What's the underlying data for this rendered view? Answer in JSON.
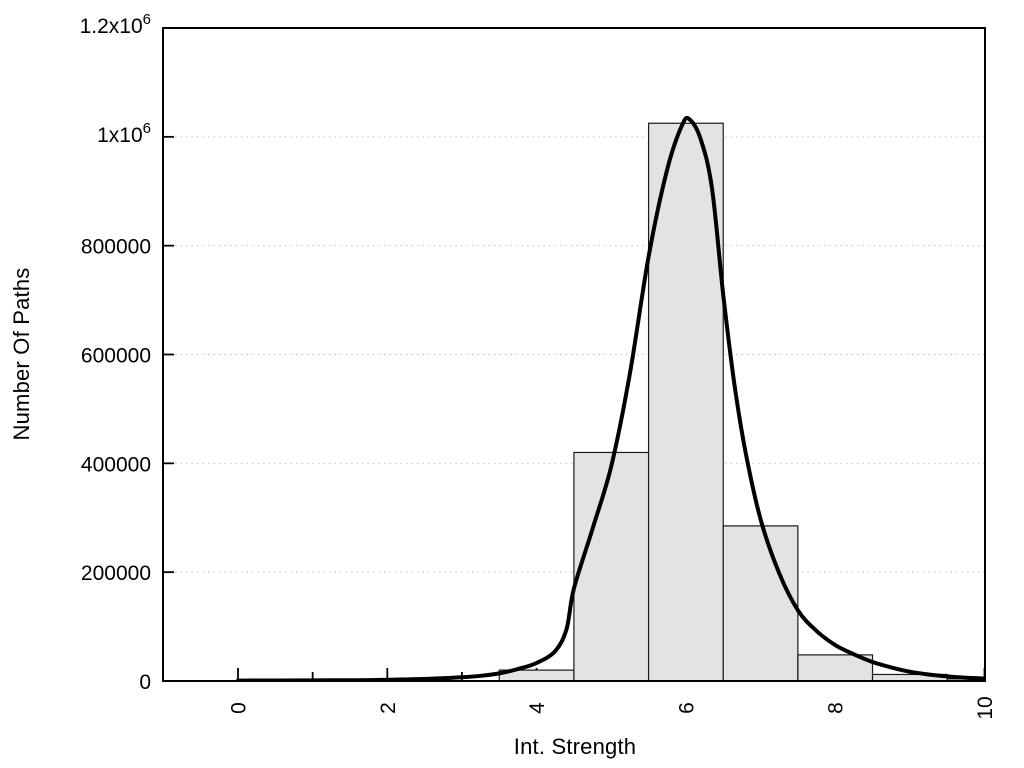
{
  "figure": {
    "background": "#ffffff"
  },
  "chart_data": {
    "type": "bar",
    "subtype": "histogram-with-fit-curve",
    "title": "",
    "xlabel": "Int. Strength",
    "ylabel": "Number Of Paths",
    "xlim": [
      -1,
      10
    ],
    "ylim": [
      0,
      1200000
    ],
    "grid": {
      "horizontal": true,
      "vertical": false,
      "style": "dotted"
    },
    "bin_width": 1,
    "bars": [
      {
        "center": 4,
        "count": 20000
      },
      {
        "center": 5,
        "count": 420000
      },
      {
        "center": 6,
        "count": 1025000
      },
      {
        "center": 7,
        "count": 285000
      },
      {
        "center": 8,
        "count": 48000
      },
      {
        "center": 9,
        "count": 12000
      },
      {
        "center": 10,
        "count": 4000
      }
    ],
    "fit_curve": {
      "name": "fit-curve",
      "points": [
        [
          0,
          800
        ],
        [
          0.5,
          900
        ],
        [
          1,
          1100
        ],
        [
          1.5,
          1500
        ],
        [
          2,
          2300
        ],
        [
          2.5,
          3800
        ],
        [
          3,
          7000
        ],
        [
          3.25,
          9500
        ],
        [
          3.5,
          14000
        ],
        [
          3.75,
          22000
        ],
        [
          4,
          33000
        ],
        [
          4.25,
          55000
        ],
        [
          4.4,
          95000
        ],
        [
          4.5,
          170000
        ],
        [
          4.75,
          280000
        ],
        [
          5,
          395000
        ],
        [
          5.25,
          565000
        ],
        [
          5.5,
          780000
        ],
        [
          5.75,
          940000
        ],
        [
          5.95,
          1022000
        ],
        [
          6.05,
          1032000
        ],
        [
          6.2,
          995000
        ],
        [
          6.35,
          905000
        ],
        [
          6.5,
          710000
        ],
        [
          6.65,
          545000
        ],
        [
          6.8,
          420000
        ],
        [
          7,
          297000
        ],
        [
          7.25,
          198000
        ],
        [
          7.5,
          130000
        ],
        [
          7.75,
          92000
        ],
        [
          8,
          66000
        ],
        [
          8.25,
          49000
        ],
        [
          8.5,
          35000
        ],
        [
          8.75,
          25000
        ],
        [
          9,
          17000
        ],
        [
          9.25,
          12000
        ],
        [
          9.5,
          8500
        ],
        [
          9.75,
          6000
        ],
        [
          10,
          4500
        ]
      ]
    },
    "x_ticks": {
      "label_rotation_deg": -90,
      "major": [
        {
          "value": 0,
          "label": "0"
        },
        {
          "value": 2,
          "label": "2"
        },
        {
          "value": 4,
          "label": "4"
        },
        {
          "value": 6,
          "label": "6"
        },
        {
          "value": 8,
          "label": "8"
        },
        {
          "value": 10,
          "label": "10"
        }
      ],
      "minor_values": [
        1,
        3,
        5,
        7,
        9
      ]
    },
    "y_ticks": [
      {
        "value": 0,
        "label": "0"
      },
      {
        "value": 200000,
        "label": "200000"
      },
      {
        "value": 400000,
        "label": "400000"
      },
      {
        "value": 600000,
        "label": "600000"
      },
      {
        "value": 800000,
        "label": "800000"
      },
      {
        "value": 1000000,
        "label": "1x10",
        "sup": "6"
      },
      {
        "value": 1200000,
        "label": "1.2x10",
        "sup": "6"
      }
    ],
    "colors": {
      "background": "#ffffff",
      "bar_fill": "#e3e3e3",
      "bar_stroke": "#1a1a1a",
      "curve": "#000000",
      "grid": "#c2c2c2",
      "axis": "#000000",
      "text": "#000000"
    }
  }
}
